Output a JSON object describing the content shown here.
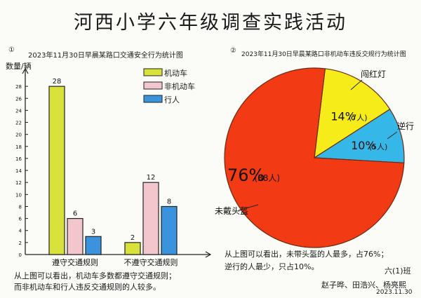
{
  "page": {
    "title": "河西小学六年级调查实践活动",
    "class_label": "六(1)班",
    "authors": "赵子晔、田浩兴、杨亮熙",
    "date": "2023.11.30"
  },
  "chart_data": [
    {
      "type": "bar",
      "marker": "①",
      "title": "2023年11月30日早晨某路口交通安全行为统计图",
      "ylabel": "数量/辆",
      "ylim": [
        0,
        30
      ],
      "categories": [
        "遵守交通规则",
        "不遵守交通规则"
      ],
      "series": [
        {
          "name": "机动车",
          "values": [
            28,
            2
          ],
          "color": "#d8e23a"
        },
        {
          "name": "非机动车",
          "values": [
            6,
            12
          ],
          "color": "#f3c6cd"
        },
        {
          "name": "行人",
          "values": [
            3,
            8
          ],
          "color": "#3a93dc"
        }
      ],
      "legend": "top-right",
      "conclusion": [
        "从上图可以看出，机动车多数都遵守交通规则；",
        "而非机动车和行人违反交通规则的人较多。"
      ]
    },
    {
      "type": "pie",
      "marker": "②",
      "title": "2023年11月30日早晨某路口非机动车违反交规行为统计图",
      "slices": [
        {
          "label": "未戴头盔",
          "percent": 76,
          "count": 38,
          "display_percent": "76%",
          "display_count": "(38人)",
          "color": "#f23a14"
        },
        {
          "label": "闯红灯",
          "percent": 14,
          "count": 7,
          "display_percent": "14%",
          "display_count": "(7人)",
          "color": "#f5ec1a"
        },
        {
          "label": "逆行",
          "percent": 10,
          "count": 5,
          "display_percent": "10%",
          "display_count": "(5人)",
          "color": "#35b7e8"
        }
      ],
      "conclusion": [
        "从上图可以看出，未带头盔的人最多，占76%；",
        "逆行的人最少，只占10%。"
      ]
    }
  ]
}
